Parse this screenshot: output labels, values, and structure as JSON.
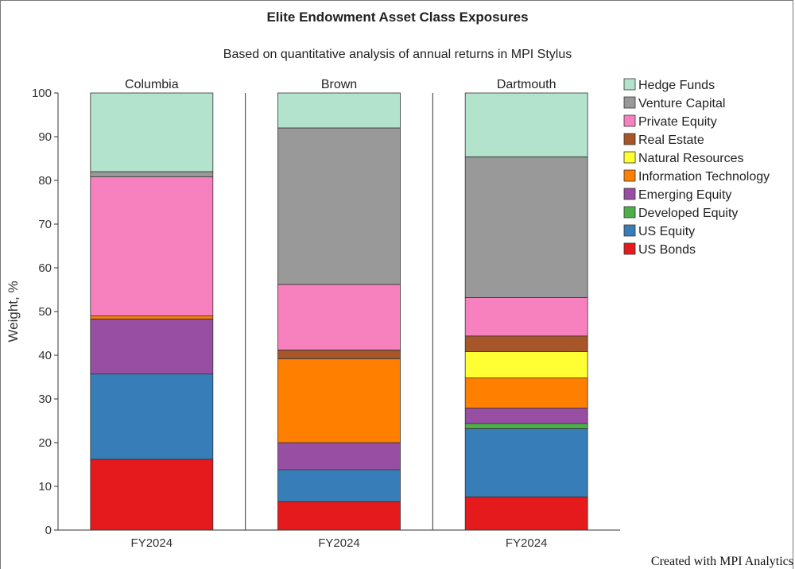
{
  "chart_data": {
    "type": "bar",
    "stacked": true,
    "title": "Elite Endowment Asset Class Exposures",
    "subtitle": "Based on quantitative analysis of annual returns in MPI Stylus",
    "ylabel": "Weight, %",
    "ylim": [
      0,
      100
    ],
    "yticks": [
      0,
      10,
      20,
      30,
      40,
      50,
      60,
      70,
      80,
      90,
      100
    ],
    "legend_position": "right",
    "credit": "Created with MPI Analytics",
    "series_order_bottom_to_top": [
      "US Bonds",
      "US Equity",
      "Developed Equity",
      "Emerging Equity",
      "Information Technology",
      "Natural Resources",
      "Real Estate",
      "Private Equity",
      "Venture Capital",
      "Hedge Funds"
    ],
    "colors": {
      "US Bonds": "#e41a1c",
      "US Equity": "#377eb8",
      "Developed Equity": "#4daf4a",
      "Emerging Equity": "#984ea3",
      "Information Technology": "#ff7f00",
      "Natural Resources": "#ffff33",
      "Real Estate": "#a65628",
      "Private Equity": "#f781bf",
      "Venture Capital": "#999999",
      "Hedge Funds": "#b3e2cd"
    },
    "legend": [
      "Hedge Funds",
      "Venture Capital",
      "Private Equity",
      "Real Estate",
      "Natural Resources",
      "Information Technology",
      "Emerging Equity",
      "Developed Equity",
      "US Equity",
      "US Bonds"
    ],
    "panels": [
      {
        "name": "Columbia",
        "category": "FY2024",
        "values": {
          "US Bonds": 16.2,
          "US Equity": 19.5,
          "Developed Equity": 0,
          "Emerging Equity": 12.6,
          "Information Technology": 0.7,
          "Natural Resources": 0,
          "Real Estate": 0,
          "Private Equity": 31.8,
          "Venture Capital": 1.2,
          "Hedge Funds": 18.0
        }
      },
      {
        "name": "Brown",
        "category": "FY2024",
        "values": {
          "US Bonds": 6.5,
          "US Equity": 7.3,
          "Developed Equity": 0,
          "Emerging Equity": 6.2,
          "Information Technology": 19.2,
          "Natural Resources": 0,
          "Real Estate": 2.0,
          "Private Equity": 15.0,
          "Venture Capital": 35.8,
          "Hedge Funds": 8.0
        }
      },
      {
        "name": "Dartmouth",
        "category": "FY2024",
        "values": {
          "US Bonds": 7.6,
          "US Equity": 15.6,
          "Developed Equity": 1.2,
          "Emerging Equity": 3.5,
          "Information Technology": 6.9,
          "Natural Resources": 6.0,
          "Real Estate": 3.6,
          "Private Equity": 8.8,
          "Venture Capital": 32.2,
          "Hedge Funds": 14.6
        }
      }
    ]
  }
}
